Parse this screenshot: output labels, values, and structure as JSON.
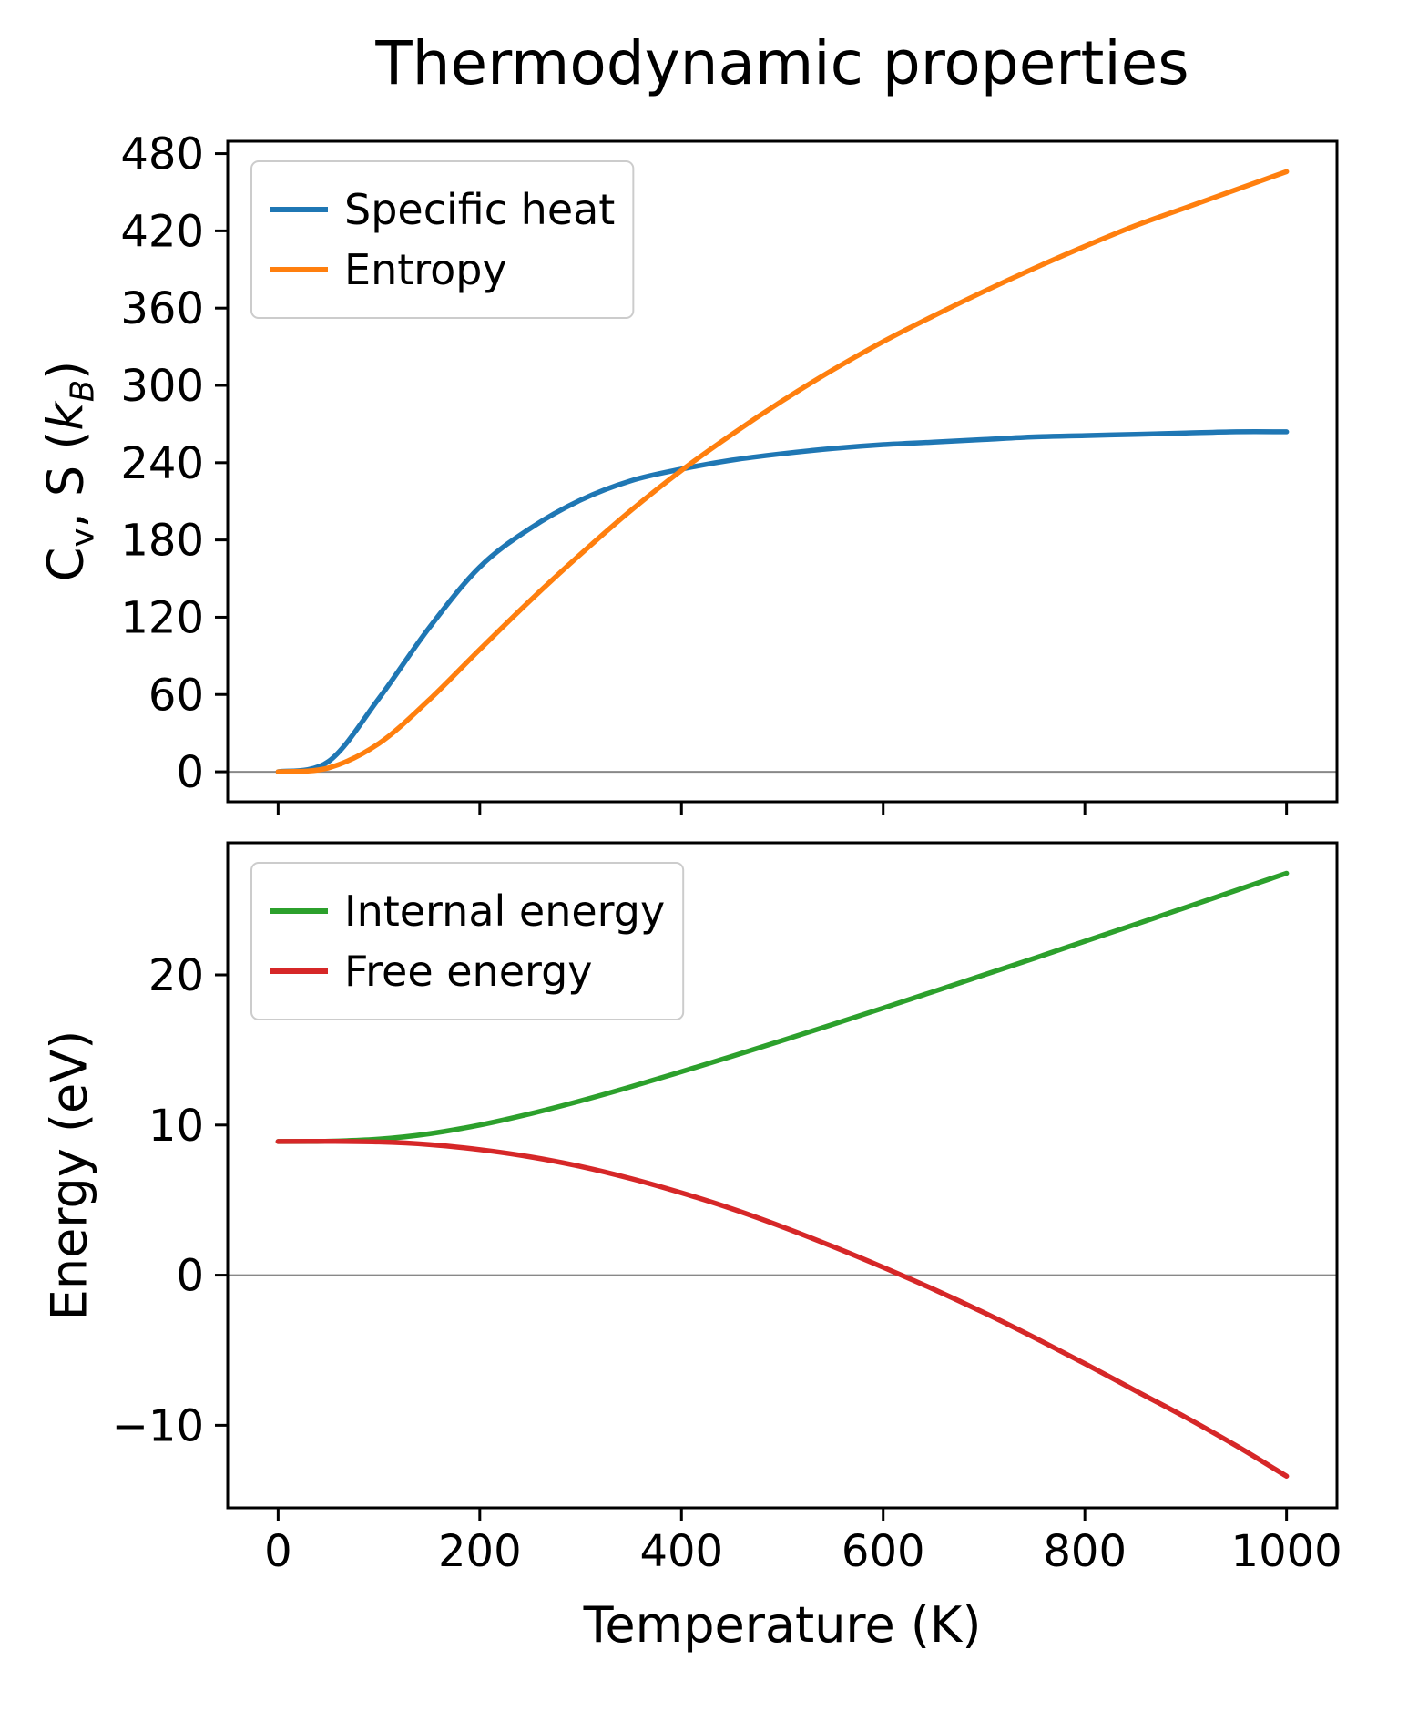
{
  "title": "Thermodynamic properties",
  "xlabel": "Temperature (K)",
  "ylabel_top": {
    "c": "C",
    "sub_v": "v",
    "mid": ", S (",
    "k": "k",
    "sub_b": "B",
    "close": ")"
  },
  "ylabel_bottom": "Energy (eV)",
  "colors": {
    "axis": "#000000",
    "zero_line": "#888888",
    "legend_edge": "#cccccc",
    "background": "#ffffff",
    "specific_heat": "#1f77b4",
    "entropy": "#ff7f0e",
    "internal_energy": "#2ca02c",
    "free_energy": "#d62728"
  },
  "chart_data": [
    {
      "type": "line",
      "panel": "top",
      "ylabel": "Cv, S (kB)",
      "x": [
        0,
        50,
        100,
        150,
        200,
        250,
        300,
        350,
        400,
        450,
        500,
        550,
        600,
        650,
        700,
        750,
        800,
        850,
        900,
        950,
        1000
      ],
      "series": [
        {
          "name": "Specific heat",
          "color": "#1f77b4",
          "values": [
            0,
            8,
            57,
            112,
            159,
            189,
            211,
            226,
            235,
            242,
            247,
            251,
            254,
            256,
            258,
            260,
            261,
            262,
            263,
            264,
            264
          ]
        },
        {
          "name": "Entropy",
          "color": "#ff7f0e",
          "values": [
            0,
            3,
            22,
            56,
            95,
            133,
            169,
            203,
            234,
            262,
            288,
            312,
            334,
            354,
            373,
            391,
            408,
            424,
            438,
            452,
            466
          ]
        }
      ],
      "xlim": [
        -50,
        1050
      ],
      "ylim": [
        -23.3,
        489.6
      ],
      "xticks": [
        0,
        200,
        400,
        600,
        800,
        1000
      ],
      "show_xtick_labels": false,
      "yticks": [
        0,
        60,
        120,
        180,
        240,
        300,
        360,
        420,
        480
      ],
      "legend_position": "upper left",
      "zero_line": true,
      "grid": false
    },
    {
      "type": "line",
      "panel": "bottom",
      "ylabel": "Energy (eV)",
      "xlabel": "Temperature (K)",
      "x": [
        0,
        50,
        100,
        150,
        200,
        250,
        300,
        350,
        400,
        450,
        500,
        550,
        600,
        650,
        700,
        750,
        800,
        850,
        900,
        950,
        1000
      ],
      "series": [
        {
          "name": "Internal energy",
          "color": "#2ca02c",
          "values": [
            8.9,
            8.92,
            9.06,
            9.42,
            10.0,
            10.75,
            11.61,
            12.55,
            13.55,
            14.58,
            15.63,
            16.7,
            17.79,
            18.89,
            20.0,
            21.11,
            22.24,
            23.36,
            24.49,
            25.63,
            26.77
          ]
        },
        {
          "name": "Free energy",
          "color": "#d62728",
          "values": [
            8.9,
            8.91,
            8.87,
            8.7,
            8.36,
            7.88,
            7.24,
            6.43,
            5.48,
            4.42,
            3.22,
            1.91,
            0.52,
            -0.94,
            -2.5,
            -4.16,
            -5.89,
            -7.69,
            -9.47,
            -11.36,
            -13.39
          ]
        }
      ],
      "xlim": [
        -50,
        1050
      ],
      "ylim": [
        -15.5,
        28.8
      ],
      "xticks": [
        0,
        200,
        400,
        600,
        800,
        1000
      ],
      "show_xtick_labels": true,
      "yticks": [
        -10,
        0,
        10,
        20
      ],
      "legend_position": "upper left",
      "zero_line": true,
      "grid": false
    }
  ]
}
